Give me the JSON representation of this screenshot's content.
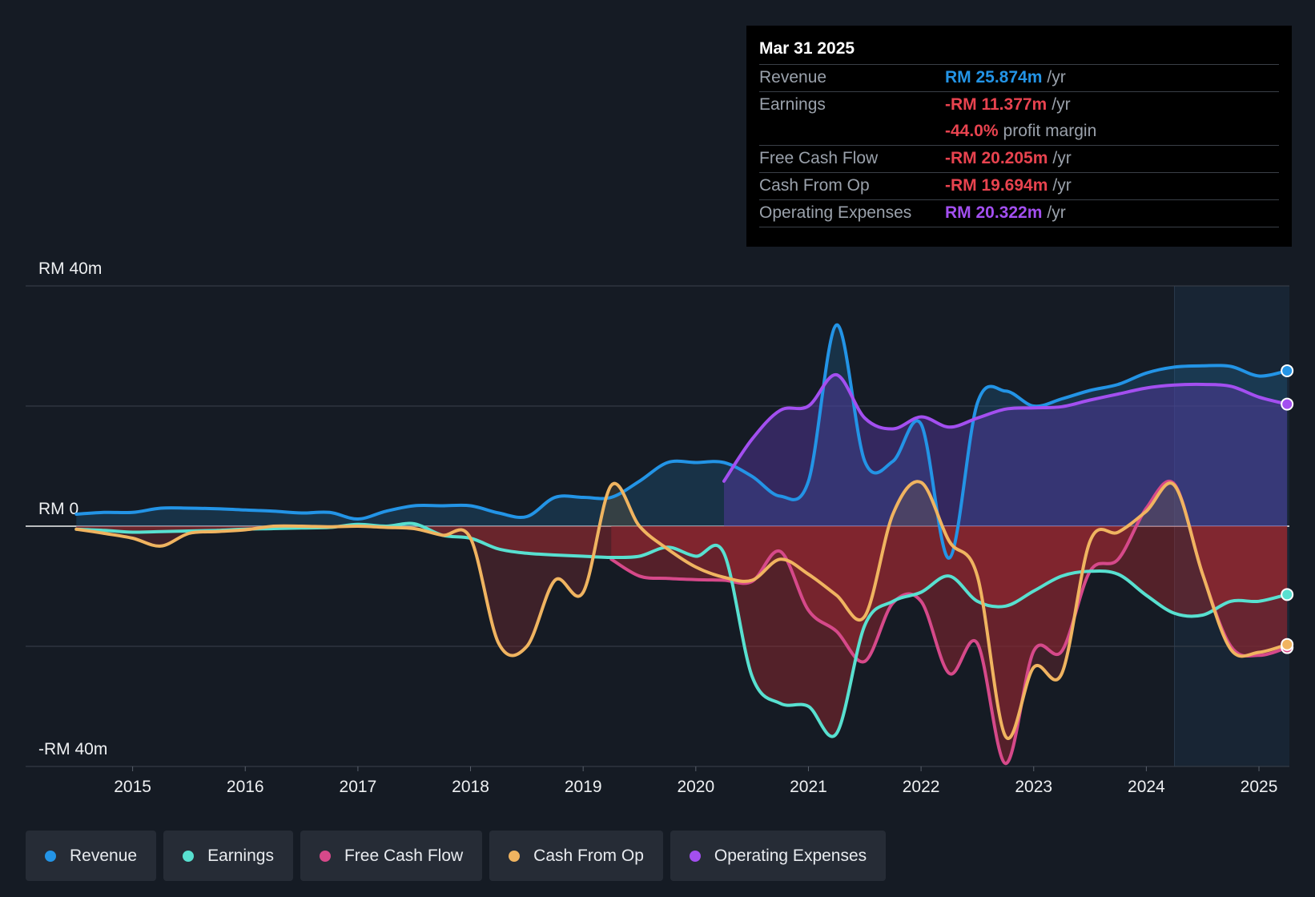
{
  "tooltip": {
    "date": "Mar 31 2025",
    "rows": [
      {
        "label": "Revenue",
        "value": "RM 25.874m",
        "unit": "/yr",
        "color": "#2394e6"
      },
      {
        "label": "Earnings",
        "value": "-RM 11.377m",
        "unit": "/yr",
        "color": "#e8434f"
      },
      {
        "label": "",
        "value": "-44.0%",
        "unit": "profit margin",
        "color": "#e8434f"
      },
      {
        "label": "Free Cash Flow",
        "value": "-RM 20.205m",
        "unit": "/yr",
        "color": "#e8434f"
      },
      {
        "label": "Cash From Op",
        "value": "-RM 19.694m",
        "unit": "/yr",
        "color": "#e8434f"
      },
      {
        "label": "Operating Expenses",
        "value": "RM 20.322m",
        "unit": "/yr",
        "color": "#a34ff0"
      }
    ]
  },
  "legend": [
    {
      "label": "Revenue",
      "color": "#2394e6"
    },
    {
      "label": "Earnings",
      "color": "#58e0d0"
    },
    {
      "label": "Free Cash Flow",
      "color": "#d6498a"
    },
    {
      "label": "Cash From Op",
      "color": "#f0b460"
    },
    {
      "label": "Operating Expenses",
      "color": "#a34ff0"
    }
  ],
  "chart_data": {
    "type": "line",
    "title": "",
    "ylabel": "",
    "xlabel": "",
    "ylim": [
      -40,
      40
    ],
    "xlim": [
      2014.05,
      2025.27
    ],
    "y_tick_labels": [
      {
        "value": 40,
        "label": "RM 40m"
      },
      {
        "value": 0,
        "label": "RM 0"
      },
      {
        "value": -40,
        "label": "-RM 40m"
      }
    ],
    "gridlines": [
      40,
      20,
      0,
      -20,
      -40
    ],
    "x_ticks": [
      2015,
      2016,
      2017,
      2018,
      2019,
      2020,
      2021,
      2022,
      2023,
      2024,
      2025
    ],
    "forecast_shade_start": 2024.25,
    "series": [
      {
        "name": "Revenue",
        "color": "#2394e6",
        "points": [
          [
            2014.5,
            2.0
          ],
          [
            2014.75,
            2.3
          ],
          [
            2015.0,
            2.3
          ],
          [
            2015.25,
            3.0
          ],
          [
            2015.5,
            3.0
          ],
          [
            2015.75,
            2.9
          ],
          [
            2016.0,
            2.7
          ],
          [
            2016.25,
            2.5
          ],
          [
            2016.5,
            2.2
          ],
          [
            2016.75,
            2.3
          ],
          [
            2017.0,
            1.2
          ],
          [
            2017.25,
            2.5
          ],
          [
            2017.5,
            3.4
          ],
          [
            2017.75,
            3.4
          ],
          [
            2018.0,
            3.4
          ],
          [
            2018.25,
            2.2
          ],
          [
            2018.5,
            1.6
          ],
          [
            2018.75,
            4.8
          ],
          [
            2019.0,
            4.8
          ],
          [
            2019.25,
            4.8
          ],
          [
            2019.5,
            7.5
          ],
          [
            2019.75,
            10.6
          ],
          [
            2020.0,
            10.6
          ],
          [
            2020.25,
            10.6
          ],
          [
            2020.5,
            8.3
          ],
          [
            2020.75,
            5.0
          ],
          [
            2021.0,
            7.5
          ],
          [
            2021.25,
            33.5
          ],
          [
            2021.5,
            10.8
          ],
          [
            2021.75,
            10.8
          ],
          [
            2022.0,
            17.0
          ],
          [
            2022.25,
            -5.3
          ],
          [
            2022.5,
            20.5
          ],
          [
            2022.75,
            22.5
          ],
          [
            2023.0,
            20.0
          ],
          [
            2023.25,
            21.2
          ],
          [
            2023.5,
            22.6
          ],
          [
            2023.75,
            23.6
          ],
          [
            2024.0,
            25.5
          ],
          [
            2024.25,
            26.5
          ],
          [
            2024.5,
            26.7
          ],
          [
            2024.75,
            26.6
          ],
          [
            2025.0,
            25.0
          ],
          [
            2025.25,
            25.874
          ]
        ]
      },
      {
        "name": "Earnings",
        "color": "#58e0d0",
        "points": [
          [
            2014.5,
            -0.5
          ],
          [
            2014.75,
            -0.7
          ],
          [
            2015.0,
            -1.0
          ],
          [
            2015.25,
            -0.9
          ],
          [
            2015.5,
            -0.8
          ],
          [
            2015.75,
            -0.7
          ],
          [
            2016.0,
            -0.5
          ],
          [
            2016.25,
            -0.4
          ],
          [
            2016.5,
            -0.3
          ],
          [
            2016.75,
            -0.2
          ],
          [
            2017.0,
            0.3
          ],
          [
            2017.25,
            0.0
          ],
          [
            2017.5,
            0.4
          ],
          [
            2017.75,
            -1.5
          ],
          [
            2018.0,
            -2.0
          ],
          [
            2018.25,
            -3.8
          ],
          [
            2018.5,
            -4.5
          ],
          [
            2018.75,
            -4.8
          ],
          [
            2019.0,
            -5.0
          ],
          [
            2019.25,
            -5.2
          ],
          [
            2019.5,
            -5.0
          ],
          [
            2019.75,
            -3.5
          ],
          [
            2020.0,
            -5.0
          ],
          [
            2020.25,
            -4.5
          ],
          [
            2020.5,
            -25.0
          ],
          [
            2020.75,
            -29.5
          ],
          [
            2021.0,
            -30.0
          ],
          [
            2021.25,
            -34.5
          ],
          [
            2021.5,
            -16.5
          ],
          [
            2021.75,
            -12.5
          ],
          [
            2022.0,
            -11.0
          ],
          [
            2022.25,
            -8.3
          ],
          [
            2022.5,
            -12.5
          ],
          [
            2022.75,
            -13.3
          ],
          [
            2023.0,
            -10.8
          ],
          [
            2023.25,
            -8.3
          ],
          [
            2023.5,
            -7.5
          ],
          [
            2023.75,
            -8.0
          ],
          [
            2024.0,
            -11.5
          ],
          [
            2024.25,
            -14.5
          ],
          [
            2024.5,
            -14.8
          ],
          [
            2024.75,
            -12.5
          ],
          [
            2025.0,
            -12.5
          ],
          [
            2025.25,
            -11.377
          ]
        ]
      },
      {
        "name": "Free Cash Flow",
        "color": "#d6498a",
        "points": [
          [
            2019.25,
            -5.5
          ],
          [
            2019.5,
            -8.3
          ],
          [
            2019.75,
            -8.7
          ],
          [
            2020.0,
            -8.9
          ],
          [
            2020.25,
            -9.0
          ],
          [
            2020.5,
            -9.2
          ],
          [
            2020.75,
            -4.2
          ],
          [
            2021.0,
            -14.0
          ],
          [
            2021.25,
            -17.5
          ],
          [
            2021.5,
            -22.5
          ],
          [
            2021.75,
            -12.8
          ],
          [
            2022.0,
            -12.5
          ],
          [
            2022.25,
            -24.5
          ],
          [
            2022.5,
            -19.5
          ],
          [
            2022.75,
            -39.5
          ],
          [
            2023.0,
            -20.8
          ],
          [
            2023.25,
            -20.8
          ],
          [
            2023.5,
            -7.5
          ],
          [
            2023.75,
            -5.5
          ],
          [
            2024.0,
            3.0
          ],
          [
            2024.25,
            7.0
          ],
          [
            2024.5,
            -8.0
          ],
          [
            2024.75,
            -20.0
          ],
          [
            2025.0,
            -21.5
          ],
          [
            2025.25,
            -20.205
          ]
        ]
      },
      {
        "name": "Cash From Op",
        "color": "#f0b460",
        "points": [
          [
            2014.5,
            -0.5
          ],
          [
            2014.75,
            -1.2
          ],
          [
            2015.0,
            -2.0
          ],
          [
            2015.25,
            -3.3
          ],
          [
            2015.5,
            -1.2
          ],
          [
            2015.75,
            -0.9
          ],
          [
            2016.0,
            -0.6
          ],
          [
            2016.25,
            0.0
          ],
          [
            2016.5,
            0.0
          ],
          [
            2016.75,
            -0.1
          ],
          [
            2017.0,
            0.0
          ],
          [
            2017.25,
            -0.2
          ],
          [
            2017.5,
            -0.4
          ],
          [
            2017.75,
            -1.5
          ],
          [
            2018.0,
            -2.0
          ],
          [
            2018.25,
            -19.5
          ],
          [
            2018.5,
            -20.0
          ],
          [
            2018.75,
            -9.0
          ],
          [
            2019.0,
            -11.0
          ],
          [
            2019.25,
            6.8
          ],
          [
            2019.5,
            0.0
          ],
          [
            2019.75,
            -3.8
          ],
          [
            2020.0,
            -6.8
          ],
          [
            2020.25,
            -8.5
          ],
          [
            2020.5,
            -9.0
          ],
          [
            2020.75,
            -5.5
          ],
          [
            2021.0,
            -8.0
          ],
          [
            2021.25,
            -11.5
          ],
          [
            2021.5,
            -15.0
          ],
          [
            2021.75,
            2.0
          ],
          [
            2022.0,
            7.3
          ],
          [
            2022.25,
            -2.5
          ],
          [
            2022.5,
            -8.3
          ],
          [
            2022.75,
            -35.0
          ],
          [
            2023.0,
            -23.5
          ],
          [
            2023.25,
            -24.5
          ],
          [
            2023.5,
            -2.5
          ],
          [
            2023.75,
            -1.0
          ],
          [
            2024.0,
            2.5
          ],
          [
            2024.25,
            6.8
          ],
          [
            2024.5,
            -8.0
          ],
          [
            2024.75,
            -20.5
          ],
          [
            2025.0,
            -21.0
          ],
          [
            2025.25,
            -19.694
          ]
        ]
      },
      {
        "name": "Operating Expenses",
        "color": "#a34ff0",
        "points": [
          [
            2020.25,
            7.5
          ],
          [
            2020.5,
            14.5
          ],
          [
            2020.75,
            19.3
          ],
          [
            2021.0,
            20.0
          ],
          [
            2021.25,
            25.2
          ],
          [
            2021.5,
            18.0
          ],
          [
            2021.75,
            16.2
          ],
          [
            2022.0,
            18.2
          ],
          [
            2022.25,
            16.5
          ],
          [
            2022.5,
            18.0
          ],
          [
            2022.75,
            19.5
          ],
          [
            2023.0,
            19.7
          ],
          [
            2023.25,
            19.9
          ],
          [
            2023.5,
            21.0
          ],
          [
            2023.75,
            22.0
          ],
          [
            2024.0,
            23.0
          ],
          [
            2024.25,
            23.5
          ],
          [
            2024.5,
            23.6
          ],
          [
            2024.75,
            23.3
          ],
          [
            2025.0,
            21.5
          ],
          [
            2025.25,
            20.322
          ]
        ]
      }
    ]
  }
}
